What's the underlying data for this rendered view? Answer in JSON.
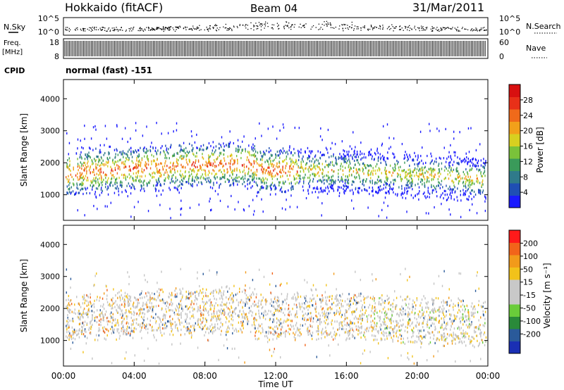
{
  "header": {
    "station": "Hokkaido (fitACF)",
    "beam": "Beam 04",
    "date": "31/Mar/2011"
  },
  "strip_panels": {
    "noise": {
      "left_label": "N.Sky",
      "right_label": "N.Search",
      "left_ticks": [
        "10^5",
        "10^0"
      ],
      "right_ticks": [
        "10^5",
        "10^0"
      ]
    },
    "freq": {
      "left_label": "Freq.",
      "left_unit": "[MHz]",
      "right_label": "Nave",
      "left_ticks": [
        "18",
        "8"
      ],
      "right_ticks": [
        "60",
        "0"
      ]
    },
    "cpid": {
      "label": "CPID",
      "value": "normal (fast) -151"
    }
  },
  "chart_data": [
    {
      "type": "heatmap",
      "panel": "power",
      "ylabel": "Slant Range [km]",
      "ylim": [
        200,
        4600
      ],
      "yticks": [
        "1000",
        "2000",
        "3000",
        "4000"
      ],
      "x_ticks": [
        "00:00",
        "04:00",
        "08:00",
        "12:00",
        "16:00",
        "20:00",
        "00:00"
      ],
      "colorbar": {
        "label": "Power [dB]",
        "ticks": [
          "4",
          "8",
          "12",
          "16",
          "20",
          "24",
          "28"
        ],
        "colors": [
          "#1a1aff",
          "#1f4fb4",
          "#2f7a8a",
          "#3a9a5a",
          "#7ac23a",
          "#d8d020",
          "#f2a01a",
          "#f06a1a",
          "#e83018",
          "#d81010"
        ]
      }
    },
    {
      "type": "heatmap",
      "panel": "velocity",
      "ylabel": "Slant Range [km]",
      "ylim": [
        200,
        4600
      ],
      "yticks": [
        "1000",
        "2000",
        "3000",
        "4000"
      ],
      "x_ticks": [
        "00:00",
        "04:00",
        "08:00",
        "12:00",
        "16:00",
        "20:00",
        "00:00"
      ],
      "xlabel": "Time UT",
      "colorbar": {
        "label": "Velocity [m s⁻¹]",
        "ticks": [
          "200",
          "100",
          "50",
          "15",
          "-15",
          "-50",
          "-100",
          "-200"
        ],
        "colors": [
          "#1a2fb4",
          "#2a5a9a",
          "#2a8a3a",
          "#6acc3a",
          "#c8c8c8",
          "#c8c8c8",
          "#f2c21a",
          "#f29a1a",
          "#f2641a",
          "#ff1a1a"
        ]
      }
    }
  ],
  "colors": {
    "scatter_grey": "#c4c4c4",
    "frame": "#000000"
  }
}
